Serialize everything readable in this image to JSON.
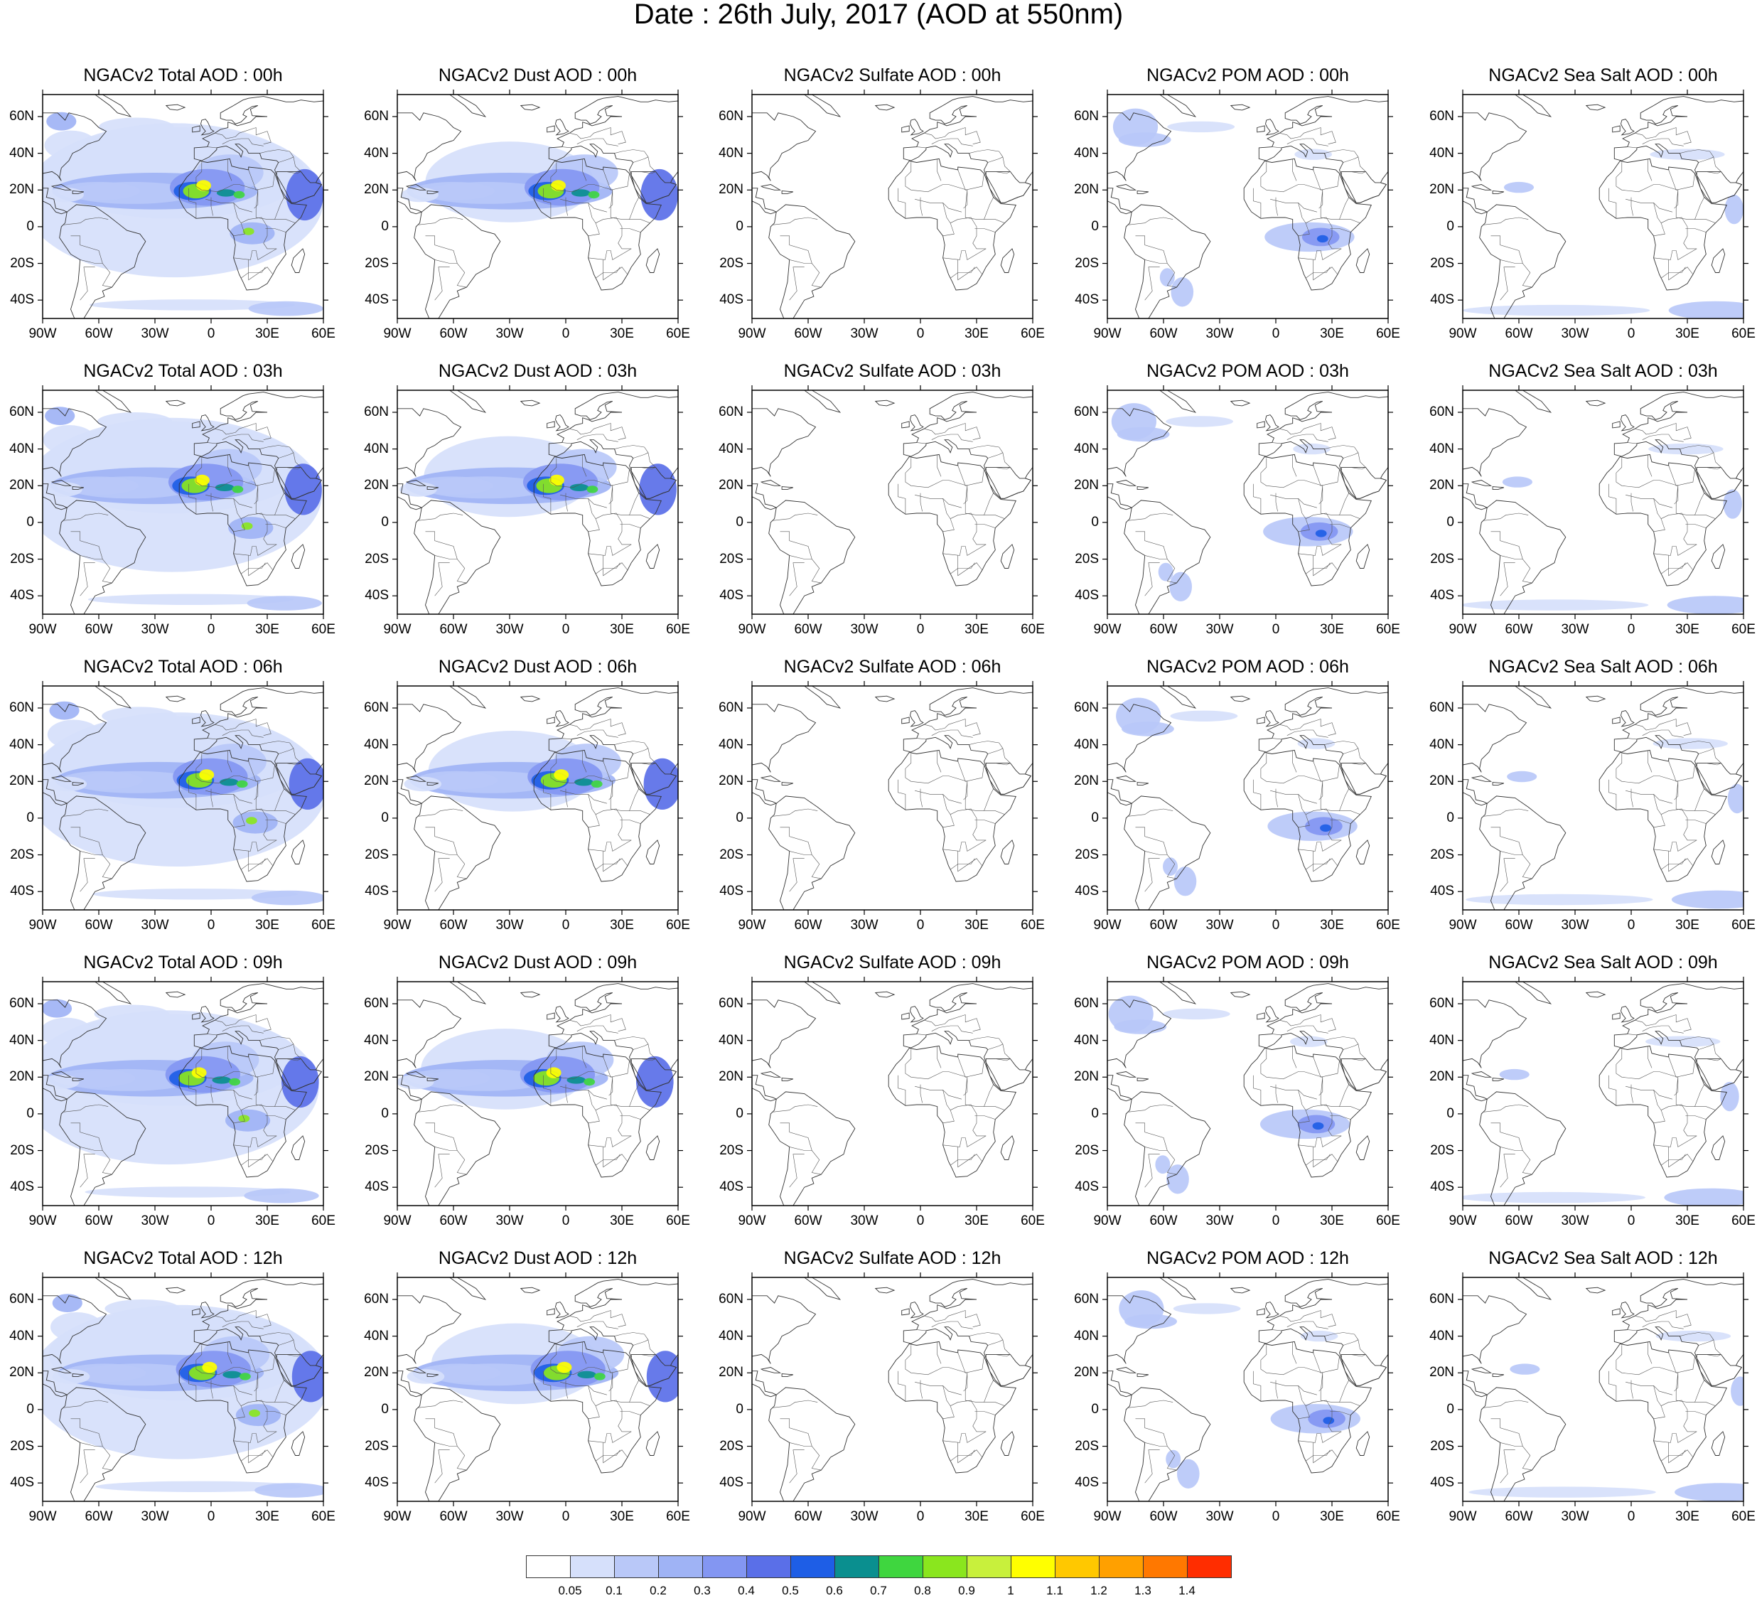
{
  "title": "Date : 26th July, 2017 (AOD at 550nm)",
  "panels": [
    [
      "NGACv2 Total AOD : 00h",
      "NGACv2 Dust AOD : 00h",
      "NGACv2 Sulfate AOD : 00h",
      "NGACv2 POM AOD : 00h",
      "NGACv2 Sea Salt AOD : 00h"
    ],
    [
      "NGACv2 Total AOD : 03h",
      "NGACv2 Dust AOD : 03h",
      "NGACv2 Sulfate AOD : 03h",
      "NGACv2 POM AOD : 03h",
      "NGACv2 Sea Salt AOD : 03h"
    ],
    [
      "NGACv2 Total AOD : 06h",
      "NGACv2 Dust AOD : 06h",
      "NGACv2 Sulfate AOD : 06h",
      "NGACv2 POM AOD : 06h",
      "NGACv2 Sea Salt AOD : 06h"
    ],
    [
      "NGACv2 Total AOD : 09h",
      "NGACv2 Dust AOD : 09h",
      "NGACv2 Sulfate AOD : 09h",
      "NGACv2 POM AOD : 09h",
      "NGACv2 Sea Salt  AOD : 09h"
    ],
    [
      "NGACv2 Total AOD  : 12h",
      "NGACv2 Dust AOD : 12h",
      "NGACv2 Sulfate AOD : 12h",
      "NGACv2 POM  AOD : 12h",
      "NGACv2 Sea Salt  AOD : 12h"
    ]
  ],
  "map": {
    "lon_range": [
      -90,
      60
    ],
    "lat_range": [
      -50,
      72
    ],
    "lon_ticks": [
      {
        "value": -90,
        "label": "90W"
      },
      {
        "value": -60,
        "label": "60W"
      },
      {
        "value": -30,
        "label": "30W"
      },
      {
        "value": 0,
        "label": "0"
      },
      {
        "value": 30,
        "label": "30E"
      },
      {
        "value": 60,
        "label": "60E"
      }
    ],
    "lat_ticks": [
      {
        "value": 60,
        "label": "60N"
      },
      {
        "value": 40,
        "label": "40N"
      },
      {
        "value": 20,
        "label": "20N"
      },
      {
        "value": 0,
        "label": "0"
      },
      {
        "value": -20,
        "label": "20S"
      },
      {
        "value": -40,
        "label": "40S"
      }
    ]
  },
  "colorbar": {
    "colors": [
      "#ffffff",
      "#d6e0fb",
      "#b9c8f8",
      "#9fb3f5",
      "#8396f2",
      "#5a6fe8",
      "#1e5ee6",
      "#0a8f8f",
      "#3fd63f",
      "#8ae61e",
      "#c8f03c",
      "#ffff00",
      "#ffc800",
      "#ffa000",
      "#ff7800",
      "#ff2d00"
    ],
    "labels": [
      "0.05",
      "0.1",
      "0.2",
      "0.3",
      "0.4",
      "0.5",
      "0.6",
      "0.7",
      "0.8",
      "0.9",
      "1",
      "1.1",
      "1.2",
      "1.3",
      "1.4"
    ]
  }
}
